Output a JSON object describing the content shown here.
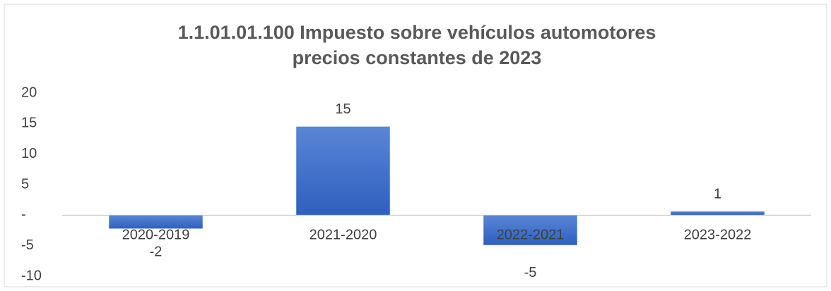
{
  "chart_data": {
    "type": "bar",
    "title": "1.1.01.01.100 Impuesto sobre vehículos automotores",
    "subtitle": "precios constantes de 2023",
    "categories": [
      "2020-2019",
      "2021-2020",
      "2022-2021",
      "2023-2022"
    ],
    "values": [
      -2.2,
      14.5,
      -4.9,
      0.6
    ],
    "value_labels": [
      "-2",
      "15",
      "-5",
      "1"
    ],
    "color": "#4472c4",
    "ylim": [
      -10,
      20
    ],
    "yticks": [
      -10,
      -5,
      {
        "value": 0,
        "label": "-"
      },
      5,
      10,
      15,
      20
    ],
    "grid": false
  }
}
